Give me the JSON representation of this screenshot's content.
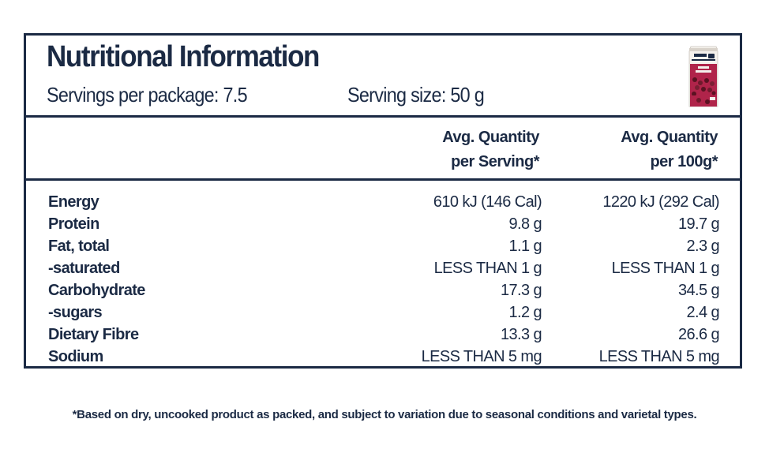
{
  "header": {
    "title": "Nutritional Information",
    "servings_per_package": "Servings per package: 7.5",
    "serving_size": "Serving size: 50 g",
    "product_image_icon": "red-beans-package-icon"
  },
  "columns": {
    "per_serving_line1": "Avg. Quantity",
    "per_serving_line2": "per Serving*",
    "per_100g_line1": "Avg. Quantity",
    "per_100g_line2": "per 100g*"
  },
  "rows": [
    {
      "label": "Energy",
      "per_serving": "610 kJ (146 Cal)",
      "per_100g": "1220 kJ (292 Cal)"
    },
    {
      "label": "Protein",
      "per_serving": "9.8 g",
      "per_100g": "19.7 g"
    },
    {
      "label": "Fat, total",
      "per_serving": "1.1 g",
      "per_100g": "2.3 g"
    },
    {
      "label": "-saturated",
      "per_serving": "LESS THAN 1 g",
      "per_100g": "LESS THAN 1 g"
    },
    {
      "label": "Carbohydrate",
      "per_serving": "17.3 g",
      "per_100g": "34.5 g"
    },
    {
      "label": "-sugars",
      "per_serving": "1.2 g",
      "per_100g": "2.4 g"
    },
    {
      "label": "Dietary Fibre",
      "per_serving": "13.3 g",
      "per_100g": "26.6 g"
    },
    {
      "label": "Sodium",
      "per_serving": "LESS THAN 5 mg",
      "per_100g": "LESS THAN 5 mg"
    }
  ],
  "footnote": "*Based on dry, uncooked product as packed, and subject to variation due to seasonal conditions and varietal types.",
  "colors": {
    "ink": "#1b2a44",
    "package_red": "#b0244a",
    "package_white": "#f4f1ec"
  }
}
